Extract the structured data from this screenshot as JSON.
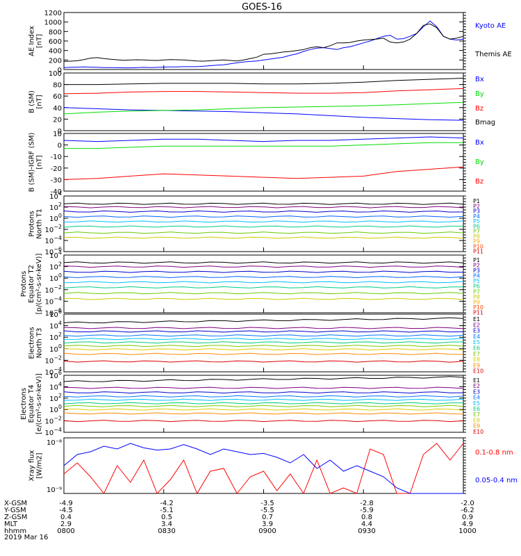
{
  "title": "GOES-16",
  "chart_data": [
    {
      "type": "line",
      "panel": "ae",
      "ylabel": [
        "AE Index",
        "[nT]"
      ],
      "ylim": [
        0,
        1200
      ],
      "ticks": [
        1200,
        1000,
        800,
        600,
        400,
        200,
        0
      ],
      "x": [
        0,
        1,
        2,
        3,
        4,
        5,
        6,
        7,
        8,
        9,
        10,
        11,
        12,
        13,
        14,
        15,
        16,
        17,
        18,
        19,
        20,
        21,
        22,
        23,
        24,
        25,
        26,
        27,
        28,
        29,
        30,
        31,
        32,
        33,
        34,
        35,
        36,
        37,
        38,
        39,
        40,
        41,
        42,
        43,
        44,
        45,
        46,
        47,
        48,
        49,
        50,
        51,
        52,
        53,
        54,
        55,
        56,
        57,
        58,
        59,
        60
      ],
      "series": [
        {
          "name": "Kyoto AE",
          "color": "#0000ff",
          "values": [
            40,
            45,
            50,
            55,
            50,
            45,
            40,
            40,
            38,
            35,
            35,
            40,
            45,
            40,
            45,
            50,
            55,
            55,
            60,
            60,
            60,
            70,
            80,
            90,
            100,
            120,
            140,
            160,
            170,
            180,
            200,
            220,
            240,
            260,
            300,
            330,
            380,
            420,
            450,
            460,
            440,
            420,
            460,
            480,
            520,
            560,
            600,
            650,
            700,
            720,
            640,
            650,
            700,
            760,
            900,
            1020,
            900,
            700,
            640,
            620,
            640
          ]
        },
        {
          "name": "Themis AE",
          "color": "#000000",
          "values": [
            170,
            175,
            185,
            210,
            240,
            250,
            230,
            215,
            205,
            195,
            200,
            205,
            200,
            195,
            190,
            200,
            210,
            205,
            200,
            190,
            180,
            175,
            185,
            195,
            200,
            190,
            180,
            200,
            230,
            260,
            320,
            330,
            350,
            370,
            380,
            400,
            420,
            460,
            480,
            460,
            500,
            560,
            560,
            570,
            600,
            620,
            630,
            640,
            660,
            580,
            560,
            580,
            640,
            760,
            930,
            960,
            880,
            700,
            640,
            660,
            700
          ]
        }
      ]
    },
    {
      "type": "line",
      "panel": "bsm",
      "ylabel": [
        "B (SM)",
        "[nT]"
      ],
      "ylim": [
        0,
        100
      ],
      "ticks": [
        100,
        80,
        60,
        40,
        20,
        0
      ],
      "x": [
        0,
        5,
        10,
        15,
        20,
        25,
        30,
        35,
        40,
        45,
        50,
        55,
        60
      ],
      "series": [
        {
          "name": "Bx",
          "color": "#0000ff",
          "values": [
            40,
            38,
            36,
            35,
            34,
            33,
            31,
            29,
            26,
            23,
            21,
            19,
            18
          ]
        },
        {
          "name": "By",
          "color": "#00dd00",
          "values": [
            29,
            32,
            34,
            35,
            36,
            38,
            40,
            41,
            42,
            43,
            45,
            47,
            49
          ]
        },
        {
          "name": "Bz",
          "color": "#ff0000",
          "values": [
            64,
            65,
            67,
            68,
            68,
            67,
            66,
            65,
            65,
            66,
            69,
            71,
            73
          ]
        },
        {
          "name": "Bmag",
          "color": "#000000",
          "values": [
            80,
            80,
            81,
            82,
            82,
            82,
            81,
            81,
            82,
            84,
            87,
            89,
            91
          ]
        }
      ]
    },
    {
      "type": "line",
      "panel": "bigrf",
      "ylabel": [
        "B (SM)-IGRF (SM)",
        "[nT]"
      ],
      "ylim": [
        -40,
        10
      ],
      "ticks": [
        10,
        0,
        -10,
        -20,
        -30,
        -40
      ],
      "x": [
        0,
        5,
        10,
        15,
        20,
        25,
        30,
        35,
        40,
        45,
        50,
        55,
        60
      ],
      "series": [
        {
          "name": "Bx",
          "color": "#0000ff",
          "values": [
            4,
            3,
            4,
            5,
            5,
            4,
            3,
            4,
            4,
            5,
            6,
            7,
            6
          ]
        },
        {
          "name": "By",
          "color": "#00dd00",
          "values": [
            -3,
            -3,
            -2,
            -1,
            -1,
            -1,
            -1,
            -1,
            -1,
            0,
            1,
            2,
            2
          ]
        },
        {
          "name": "Bz",
          "color": "#ff0000",
          "values": [
            -30,
            -29,
            -27,
            -25,
            -26,
            -27,
            -28,
            -29,
            -28,
            -27,
            -23,
            -21,
            -19
          ]
        }
      ]
    },
    {
      "type": "line",
      "panel": "pnt1",
      "ylabel": [
        "Protons",
        "North T1"
      ],
      "scale": "log",
      "ylim": [
        -6,
        4
      ],
      "ticks": [
        4,
        2,
        0,
        -2,
        -4,
        -6
      ],
      "series": [
        {
          "name": "P1",
          "color": "#000000",
          "level": 2.6
        },
        {
          "name": "P2",
          "color": "#800080",
          "level": 2.0
        },
        {
          "name": "P3",
          "color": "#0000cc",
          "level": 1.2
        },
        {
          "name": "P4",
          "color": "#0066ff",
          "level": 0.3
        },
        {
          "name": "P5",
          "color": "#00bfff",
          "level": -0.6
        },
        {
          "name": "P6",
          "color": "#00cc88",
          "level": -1.5
        },
        {
          "name": "P7",
          "color": "#66cc00",
          "level": -2.6
        },
        {
          "name": "P8",
          "color": "#cccc00",
          "level": -3.5
        },
        {
          "name": "P9",
          "color": "#ffaa00",
          "level": null
        },
        {
          "name": "P10",
          "color": "#ff4400",
          "level": null
        },
        {
          "name": "P11",
          "color": "#cc0000",
          "level": null
        }
      ]
    },
    {
      "type": "line",
      "panel": "pet2",
      "ylabel": [
        "Protons",
        "Equator T2",
        "[p/(cm²-s-sr-keV)]"
      ],
      "scale": "log",
      "ylim": [
        -6,
        4
      ],
      "ticks": [
        4,
        2,
        0,
        -2,
        -4,
        -6
      ],
      "series": [
        {
          "name": "P1",
          "color": "#000000",
          "level": 2.7
        },
        {
          "name": "P2",
          "color": "#800080",
          "level": 2.0
        },
        {
          "name": "P3",
          "color": "#0000cc",
          "level": 1.1
        },
        {
          "name": "P4",
          "color": "#0066ff",
          "level": 0.2
        },
        {
          "name": "P5",
          "color": "#00bfff",
          "level": -0.7
        },
        {
          "name": "P6",
          "color": "#00cc88",
          "level": -1.6
        },
        {
          "name": "P7",
          "color": "#66cc00",
          "level": -2.6
        },
        {
          "name": "P8",
          "color": "#cccc00",
          "level": -3.6
        },
        {
          "name": "P9",
          "color": "#ffaa00",
          "level": null
        },
        {
          "name": "P10",
          "color": "#ff4400",
          "level": null
        },
        {
          "name": "P11",
          "color": "#cc0000",
          "level": null
        }
      ]
    },
    {
      "type": "line",
      "panel": "ent3",
      "ylabel": [
        "Electrons",
        "North T3"
      ],
      "scale": "log",
      "ylim": [
        -4,
        6
      ],
      "ticks": [
        6,
        4,
        2,
        0,
        -2,
        -4
      ],
      "series": [
        {
          "name": "E1",
          "color": "#000000",
          "level": 4.5
        },
        {
          "name": "E2",
          "color": "#800080",
          "level": 3.6
        },
        {
          "name": "E3",
          "color": "#0000cc",
          "level": 3.0
        },
        {
          "name": "E4",
          "color": "#0077ff",
          "level": 2.3
        },
        {
          "name": "E5",
          "color": "#00bfff",
          "level": 1.7
        },
        {
          "name": "E6",
          "color": "#00cc77",
          "level": 1.1
        },
        {
          "name": "E7",
          "color": "#77cc00",
          "level": 0.5
        },
        {
          "name": "E8",
          "color": "#ddcc00",
          "level": -0.1
        },
        {
          "name": "E9",
          "color": "#ff8800",
          "level": -0.9
        },
        {
          "name": "E10",
          "color": "#dd0000",
          "level": -2.2
        }
      ]
    },
    {
      "type": "line",
      "panel": "eet4",
      "ylabel": [
        "Electrons",
        "Equator T4",
        "[e/(cm²-s-sr-keV)]"
      ],
      "scale": "log",
      "ylim": [
        -4,
        6
      ],
      "ticks": [
        6,
        4,
        2,
        0,
        -2,
        -4
      ],
      "series": [
        {
          "name": "E1",
          "color": "#000000",
          "level": 4.9
        },
        {
          "name": "E2",
          "color": "#800080",
          "level": 3.8
        },
        {
          "name": "E3",
          "color": "#0000cc",
          "level": 3.0
        },
        {
          "name": "E4",
          "color": "#0077ff",
          "level": 2.3
        },
        {
          "name": "E5",
          "color": "#00bfff",
          "level": 1.7
        },
        {
          "name": "E6",
          "color": "#00cc77",
          "level": 1.1
        },
        {
          "name": "E7",
          "color": "#77cc00",
          "level": 0.6
        },
        {
          "name": "E8",
          "color": "#ddcc00",
          "level": 0.0
        },
        {
          "name": "E9",
          "color": "#ff8800",
          "level": -0.7
        },
        {
          "name": "E10",
          "color": "#dd0000",
          "level": -2.0
        }
      ]
    },
    {
      "type": "line",
      "panel": "xray",
      "ylabel": [
        "Xray flux",
        "[W/m2]"
      ],
      "scale": "log",
      "ylim": [
        -9,
        -8
      ],
      "tick_labels": [
        "10⁻⁸",
        "10⁻⁹"
      ],
      "x": [
        0,
        2,
        4,
        6,
        8,
        10,
        12,
        14,
        16,
        18,
        20,
        22,
        24,
        26,
        28,
        30,
        32,
        34,
        36,
        38,
        40,
        42,
        44,
        46,
        48,
        50,
        52,
        54,
        56,
        58,
        60
      ],
      "series": [
        {
          "name": "0.1-0.8 nm",
          "color": "#ff0000",
          "values": [
            -8.65,
            -8.45,
            -8.7,
            -9.0,
            -8.5,
            -8.8,
            -8.4,
            -9.0,
            -8.75,
            -8.4,
            -9.0,
            -8.6,
            -8.55,
            -9.0,
            -8.7,
            -8.6,
            -8.95,
            -8.65,
            -9.0,
            -8.4,
            -9.0,
            -8.9,
            -9.0,
            -8.2,
            -8.3,
            -9.0,
            -9.0,
            -8.3,
            -8.1,
            -8.4,
            -8.1
          ]
        },
        {
          "name": "0.05-0.4 nm",
          "color": "#0000ff",
          "values": [
            -8.5,
            -8.3,
            -8.25,
            -8.15,
            -8.2,
            -8.1,
            -8.18,
            -8.22,
            -8.2,
            -8.12,
            -8.2,
            -8.3,
            -8.2,
            -8.25,
            -8.3,
            -8.28,
            -8.35,
            -8.45,
            -8.3,
            -8.55,
            -8.4,
            -8.6,
            -8.5,
            -8.6,
            -8.7,
            -8.9,
            -9.0,
            -9.0,
            -9.0,
            -9.0,
            -9.0
          ]
        }
      ]
    }
  ],
  "xaxis": {
    "tick_labels": [
      "0800",
      "0830",
      "0900",
      "0930",
      "1000"
    ],
    "rows": [
      {
        "label": "X-GSM",
        "values": [
          "-4.9",
          "-4.2",
          "-3.5",
          "-2.8",
          "-2.0"
        ]
      },
      {
        "label": "Y-GSM",
        "values": [
          "-4.5",
          "-5.1",
          "-5.5",
          "-5.9",
          "-6.2"
        ]
      },
      {
        "label": "Z-GSM",
        "values": [
          "0.4",
          "0.5",
          "0.7",
          "0.8",
          "0.9"
        ]
      },
      {
        "label": "MLT",
        "values": [
          "2.9",
          "3.4",
          "3.9",
          "4.4",
          "4.9"
        ]
      },
      {
        "label": "hhmm",
        "values": [
          "0800",
          "0830",
          "0900",
          "0930",
          "1000"
        ]
      }
    ],
    "date": "2019 Mar 16"
  }
}
